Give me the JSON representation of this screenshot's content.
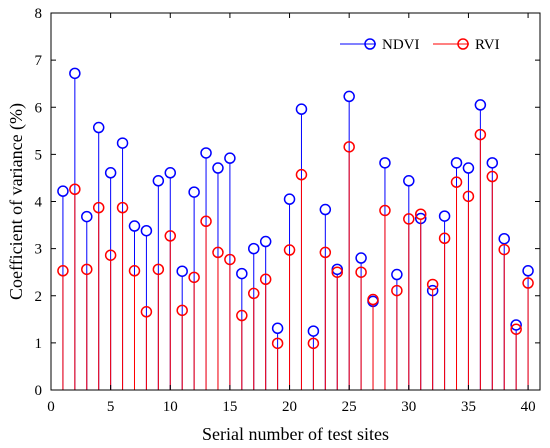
{
  "chart_data": {
    "type": "stem",
    "xlabel": "Serial number of test sites",
    "ylabel": "Coefficient of variance (%)",
    "xlim": [
      0,
      41
    ],
    "ylim": [
      0,
      8
    ],
    "xticks": [
      0,
      5,
      10,
      15,
      20,
      25,
      30,
      35,
      40
    ],
    "yticks": [
      0,
      1,
      2,
      3,
      4,
      5,
      6,
      7,
      8
    ],
    "legend_position": "top-right",
    "grid": false,
    "x": [
      1,
      2,
      3,
      4,
      5,
      6,
      7,
      8,
      9,
      10,
      11,
      12,
      13,
      14,
      15,
      16,
      17,
      18,
      19,
      20,
      21,
      22,
      23,
      24,
      25,
      26,
      27,
      28,
      29,
      30,
      31,
      32,
      33,
      34,
      35,
      36,
      37,
      38,
      39,
      40
    ],
    "series": [
      {
        "name": "NDVI",
        "color": "#0000ff",
        "marker": "circle",
        "values": [
          4.22,
          6.72,
          3.68,
          5.57,
          4.61,
          5.24,
          3.48,
          3.38,
          4.44,
          4.61,
          2.52,
          4.2,
          5.03,
          4.71,
          4.92,
          2.47,
          3.0,
          3.15,
          1.31,
          4.05,
          5.96,
          1.25,
          3.83,
          2.56,
          6.23,
          2.8,
          1.88,
          4.82,
          2.45,
          4.44,
          3.64,
          2.11,
          3.69,
          4.82,
          4.71,
          6.05,
          4.82,
          3.21,
          1.38,
          2.53
        ]
      },
      {
        "name": "RVI",
        "color": "#ff0000",
        "marker": "circle",
        "values": [
          2.53,
          4.26,
          2.56,
          3.87,
          2.86,
          3.87,
          2.53,
          1.66,
          2.56,
          3.27,
          1.69,
          2.39,
          3.58,
          2.92,
          2.77,
          1.58,
          2.05,
          2.35,
          0.99,
          2.97,
          4.57,
          0.99,
          2.92,
          2.5,
          5.16,
          2.5,
          1.92,
          3.81,
          2.11,
          3.63,
          3.73,
          2.24,
          3.22,
          4.41,
          4.11,
          5.42,
          4.53,
          2.98,
          1.29,
          2.27
        ]
      }
    ]
  }
}
